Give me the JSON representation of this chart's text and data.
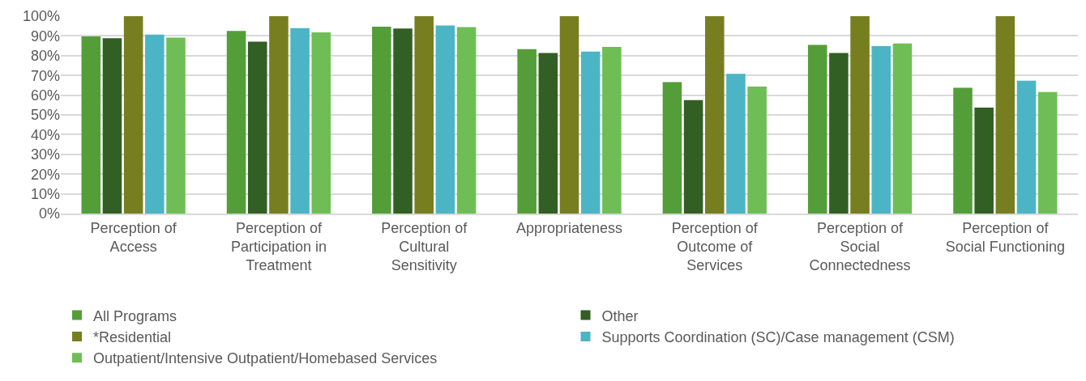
{
  "chart_data": {
    "type": "bar",
    "categories": [
      "Perception of Access",
      "Perception of Participation in Treatment",
      "Perception of Cultural Sensitivity",
      "Appropriateness",
      "Perception of Outcome of Services",
      "Perception of Social Connectedness",
      "Perception of Social Functioning"
    ],
    "series": [
      {
        "name": "All Programs",
        "color": "#549e39",
        "values": [
          89.8,
          92.5,
          94.7,
          83.3,
          66.6,
          85.5,
          63.7
        ]
      },
      {
        "name": "Other",
        "color": "#325f24",
        "values": [
          88.8,
          87.1,
          93.8,
          81.4,
          57.5,
          81.4,
          53.7
        ]
      },
      {
        "name": "*Residential",
        "color": "#777e20",
        "values": [
          100,
          100,
          100,
          100,
          100,
          100,
          100
        ]
      },
      {
        "name": "Supports Coordination (SC)/Case management (CSM)",
        "color": "#4bb5c6",
        "values": [
          90.7,
          94,
          95.3,
          82.1,
          70.8,
          84.8,
          67.3
        ]
      },
      {
        "name": "Outpatient/Intensive Outpatient/Homebased Services",
        "color": "#6fbe55",
        "values": [
          89.1,
          91.8,
          94.5,
          84.4,
          64.3,
          86.2,
          61.6
        ]
      }
    ],
    "ylim": [
      0,
      100
    ],
    "yticks": [
      {
        "value": 0,
        "label": "0%"
      },
      {
        "value": 10,
        "label": "10%"
      },
      {
        "value": 20,
        "label": "20%"
      },
      {
        "value": 30,
        "label": "30%"
      },
      {
        "value": 40,
        "label": "40%"
      },
      {
        "value": 50,
        "label": "50%"
      },
      {
        "value": 60,
        "label": "60%"
      },
      {
        "value": 70,
        "label": "70%"
      },
      {
        "value": 80,
        "label": "80%"
      },
      {
        "value": 90,
        "label": "90%"
      },
      {
        "value": 100,
        "label": "100%"
      }
    ],
    "grid": "y",
    "legend": "bottom"
  }
}
